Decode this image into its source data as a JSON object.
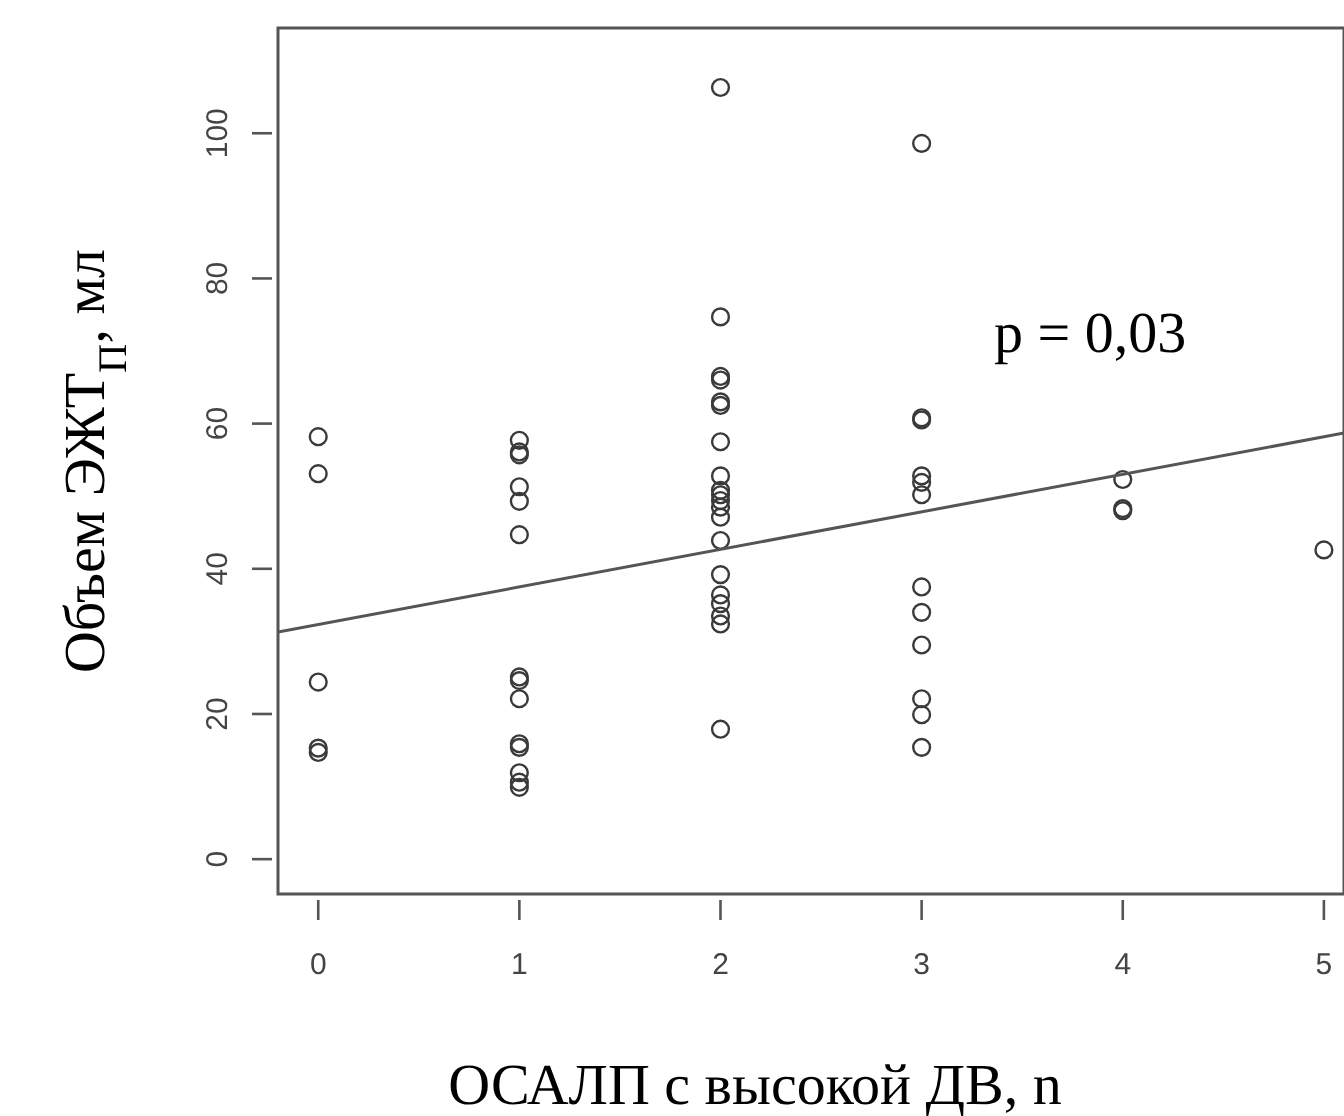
{
  "chart_data": {
    "type": "scatter",
    "xlabel": "ОСАЛП с высокой ДВ, n",
    "ylabel": "Объем ЭЖТ$_{П}$, мл",
    "xlim": [
      -0.2,
      5.1
    ],
    "xticks": [
      0,
      1,
      2,
      3,
      4,
      5
    ],
    "ylim": [
      -4.8,
      114.5
    ],
    "yticks": [
      0,
      20,
      40,
      60,
      80,
      100
    ],
    "grid": false,
    "marker": "circle",
    "annotations": [
      "p = 0,03"
    ],
    "series": [
      {
        "color": "#3a3a3a",
        "x": [
          0,
          0,
          0,
          0,
          0,
          1,
          1,
          1,
          1,
          1,
          1,
          1,
          1,
          1,
          1,
          1,
          1,
          1,
          1,
          2,
          2,
          2,
          2,
          2,
          2,
          2,
          2,
          2,
          2,
          2,
          2,
          2,
          2,
          2,
          2,
          2,
          2,
          2,
          2,
          3,
          3,
          3,
          3,
          3,
          3,
          3,
          3,
          3,
          3,
          3,
          3,
          4,
          4,
          4,
          5
        ],
        "values": [
          58.2,
          53.1,
          24.4,
          15.3,
          14.7,
          57.7,
          56.1,
          55.7,
          51.3,
          49.3,
          44.7,
          25.1,
          24.6,
          22.1,
          15.9,
          15.4,
          11.9,
          10.6,
          9.9,
          106.3,
          74.7,
          66.5,
          66.0,
          63.0,
          62.5,
          57.5,
          52.8,
          50.8,
          50.2,
          49.4,
          48.5,
          47.1,
          43.9,
          39.2,
          36.4,
          35.2,
          33.5,
          32.4,
          17.9,
          98.6,
          60.8,
          60.5,
          52.8,
          51.9,
          50.2,
          37.5,
          34.0,
          29.5,
          22.1,
          19.9,
          15.4,
          52.3,
          48.3,
          48.0,
          42.6
        ]
      },
      {
        "type": "line",
        "color": "#555555",
        "line_style": "solid",
        "marker": "none",
        "x": [
          -0.2,
          5.1
        ],
        "values": [
          31.3,
          58.7
        ]
      }
    ]
  }
}
